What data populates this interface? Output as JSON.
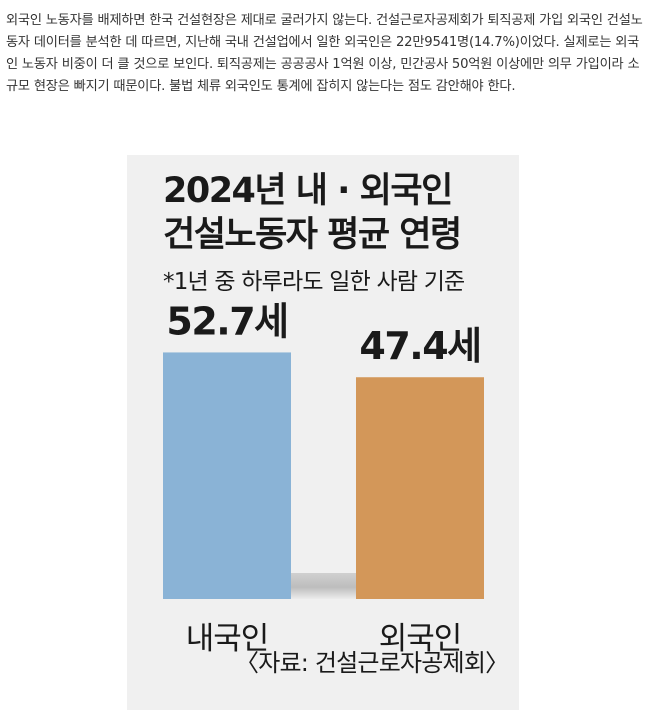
{
  "article": {
    "text": "외국인 노동자를 배제하면 한국 건설현장은 제대로 굴러가지 않는다. 건설근로자공제회가 퇴직공제 가입 외국인 건설노동자 데이터를 분석한 데 따르면, 지난해 국내 건설업에서 일한 외국인은 22만9541명(14.7%)이었다. 실제로는 외국인 노동자 비중이 더 클 것으로 보인다. 퇴직공제는 공공공사 1억원 이상, 민간공사 50억원 이상에만 의무 가입이라 소규모 현장은 빠지기 때문이다. 불법 체류 외국인도 통계에 잡히지 않는다는 점도 감안해야 한다."
  },
  "chart_data": {
    "type": "bar",
    "title_line1": "2024년 내 · 외국인",
    "title_line2": "건설노동자 평균 연령",
    "subtitle": "*1년 중 하루라도 일한 사람 기준",
    "categories": [
      "내국인",
      "외국인"
    ],
    "values": [
      52.7,
      47.4
    ],
    "value_labels": [
      "52.7세",
      "47.4세"
    ],
    "colors": [
      "#8ab3d6",
      "#d39759"
    ],
    "source": "〈자료: 건설근로자공제회〉",
    "ylim": [
      0,
      56
    ]
  }
}
